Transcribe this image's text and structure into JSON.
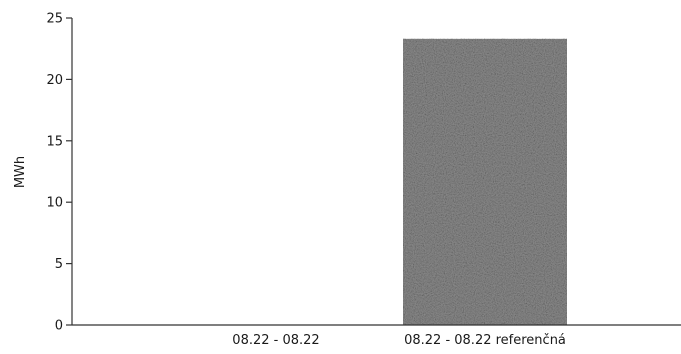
{
  "chart_data": {
    "type": "bar",
    "categories": [
      "08.22 - 08.22",
      "08.22 - 08.22 referenčná"
    ],
    "values": [
      0,
      23.3
    ],
    "title": "",
    "xlabel": "",
    "ylabel": "MWh",
    "ylim": [
      0,
      25
    ],
    "yticks": [
      0,
      5,
      10,
      15,
      20,
      25
    ],
    "grid": false,
    "legend": "none",
    "colors": {
      "bar": "#8c8c8c",
      "axis": "#333333",
      "text": "#1a1a1a"
    }
  }
}
